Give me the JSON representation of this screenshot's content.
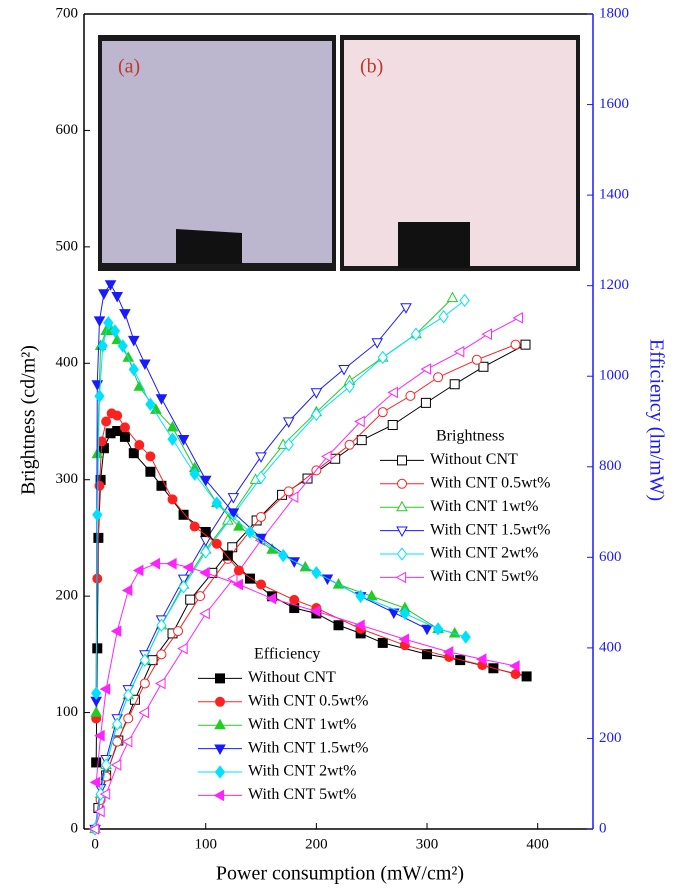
{
  "chart_data": {
    "type": "line",
    "x_label": "Power consumption (mW/cm²)",
    "y_label": "Brightness (cd/m²)",
    "y2_label": "Efficiency (lm/mW)",
    "y2_color": "#1a1aff",
    "annotations": [
      "(a)",
      "(b)"
    ],
    "xlim": [
      -10,
      450
    ],
    "xticks": [
      0,
      100,
      200,
      300,
      400
    ],
    "ylim": [
      0,
      700
    ],
    "yticks": [
      0,
      100,
      200,
      300,
      400,
      500,
      600,
      700
    ],
    "y2lim": [
      0,
      1800
    ],
    "y2ticks": [
      0,
      200,
      400,
      600,
      800,
      1000,
      1200,
      1400,
      1600,
      1800
    ],
    "legends": [
      {
        "title": "Brightness",
        "position": "right-middle"
      },
      {
        "title": "Efficiency",
        "position": "bottom-center"
      }
    ],
    "series": [
      {
        "name": "Without CNT",
        "color": "#000000",
        "marker": "square",
        "filled": false,
        "legend": 0,
        "x": [
          3,
          10,
          21,
          36,
          52,
          70,
          86,
          106,
          124,
          146,
          169,
          192,
          217,
          241,
          269,
          299,
          325,
          351,
          389
        ],
        "values": [
          18,
          46,
          76,
          111,
          145,
          168,
          197,
          220,
          242,
          265,
          287,
          301,
          318,
          334,
          347,
          366,
          382,
          397,
          416
        ]
      },
      {
        "name": "With CNT 0.5wt%",
        "color": "#ff2020",
        "marker": "circle",
        "filled": false,
        "legend": 0,
        "x": [
          0,
          5,
          10,
          20,
          30,
          45,
          60,
          75,
          95,
          120,
          150,
          175,
          200,
          230,
          260,
          285,
          310,
          345,
          380
        ],
        "values": [
          0,
          25,
          45,
          75,
          95,
          125,
          150,
          170,
          200,
          232,
          268,
          290,
          308,
          330,
          358,
          372,
          388,
          403,
          416
        ]
      },
      {
        "name": "With CNT 1wt%",
        "color": "#22cc22",
        "marker": "triangle-up",
        "filled": false,
        "legend": 0,
        "x": [
          0,
          5,
          10,
          20,
          30,
          45,
          60,
          80,
          100,
          120,
          145,
          170,
          200,
          230,
          260,
          290,
          323
        ],
        "values": [
          0,
          30,
          55,
          90,
          115,
          145,
          175,
          210,
          240,
          265,
          300,
          330,
          358,
          385,
          405,
          425,
          456
        ]
      },
      {
        "name": "With CNT 1.5wt%",
        "color": "#1a1aff",
        "marker": "triangle-down",
        "filled": false,
        "legend": 0,
        "x": [
          0,
          5,
          10,
          20,
          30,
          45,
          60,
          80,
          100,
          125,
          150,
          175,
          200,
          225,
          255,
          281
        ],
        "values": [
          0,
          35,
          60,
          95,
          120,
          150,
          180,
          215,
          248,
          285,
          320,
          350,
          375,
          395,
          418,
          448
        ]
      },
      {
        "name": "With CNT 2wt%",
        "color": "#00e0ff",
        "marker": "diamond",
        "filled": false,
        "legend": 0,
        "x": [
          0,
          5,
          10,
          20,
          30,
          45,
          60,
          80,
          100,
          125,
          150,
          175,
          200,
          230,
          260,
          290,
          315,
          334
        ],
        "values": [
          0,
          30,
          55,
          90,
          115,
          145,
          175,
          208,
          238,
          270,
          302,
          330,
          356,
          380,
          405,
          425,
          440,
          454
        ]
      },
      {
        "name": "With CNT 5wt%",
        "color": "#ff22ff",
        "marker": "triangle-left",
        "filled": false,
        "legend": 0,
        "x": [
          0,
          5,
          10,
          20,
          30,
          45,
          60,
          80,
          100,
          125,
          150,
          180,
          210,
          240,
          270,
          300,
          330,
          355,
          383
        ],
        "values": [
          0,
          15,
          30,
          55,
          75,
          100,
          125,
          155,
          185,
          215,
          248,
          285,
          320,
          350,
          375,
          395,
          410,
          425,
          439
        ]
      },
      {
        "name": "Without CNT",
        "color": "#000000",
        "marker": "square",
        "filled": true,
        "legend": 1,
        "axis": "y2",
        "x": [
          1,
          2,
          3,
          5,
          8,
          14,
          20,
          27,
          35,
          50,
          60,
          80,
          100,
          120,
          140,
          160,
          180,
          200,
          220,
          240,
          260,
          300,
          330,
          360,
          390
        ],
        "values": [
          147,
          399,
          643,
          771,
          841,
          874,
          879,
          866,
          830,
          789,
          758,
          694,
          656,
          604,
          553,
          514,
          488,
          476,
          450,
          432,
          411,
          386,
          373,
          355,
          337
        ]
      },
      {
        "name": "With CNT 0.5wt%",
        "color": "#ff2020",
        "marker": "circle",
        "filled": true,
        "legend": 1,
        "axis": "y2",
        "x": [
          1,
          2,
          4,
          6,
          10,
          15,
          20,
          27,
          40,
          50,
          70,
          90,
          110,
          130,
          150,
          180,
          200,
          240,
          280,
          320,
          350,
          380
        ],
        "values": [
          244,
          553,
          758,
          856,
          900,
          918,
          913,
          887,
          848,
          823,
          728,
          668,
          630,
          571,
          540,
          506,
          488,
          442,
          406,
          380,
          362,
          342
        ]
      },
      {
        "name": "With CNT 1wt%",
        "color": "#22cc22",
        "marker": "triangle-up",
        "filled": true,
        "legend": 1,
        "axis": "y2",
        "x": [
          1,
          2,
          5,
          10,
          15,
          20,
          30,
          40,
          55,
          70,
          90,
          110,
          130,
          160,
          190,
          220,
          250,
          280,
          310,
          325
        ],
        "values": [
          257,
          828,
          1067,
          1100,
          1100,
          1080,
          1041,
          977,
          926,
          887,
          797,
          720,
          668,
          617,
          578,
          540,
          514,
          488,
          442,
          432
        ]
      },
      {
        "name": "With CNT 1.5wt%",
        "color": "#1a1aff",
        "marker": "triangle-down",
        "filled": true,
        "legend": 1,
        "axis": "y2",
        "x": [
          1,
          2,
          4,
          8,
          14,
          20,
          27,
          35,
          45,
          60,
          80,
          100,
          125,
          150,
          180,
          210,
          240,
          270,
          300
        ],
        "values": [
          283,
          982,
          1123,
          1183,
          1203,
          1177,
          1139,
          1080,
          1028,
          951,
          861,
          771,
          699,
          643,
          591,
          553,
          514,
          478,
          442
        ]
      },
      {
        "name": "With CNT 2wt%",
        "color": "#00e0ff",
        "marker": "diamond",
        "filled": true,
        "legend": 1,
        "axis": "y2",
        "x": [
          1,
          2,
          4,
          7,
          12,
          18,
          25,
          35,
          50,
          70,
          90,
          110,
          140,
          170,
          200,
          240,
          280,
          310,
          335
        ],
        "values": [
          300,
          694,
          956,
          1067,
          1118,
          1100,
          1067,
          1015,
          938,
          861,
          784,
          720,
          656,
          604,
          566,
          514,
          476,
          442,
          424
        ]
      },
      {
        "name": "With CNT 5wt%",
        "color": "#ff22ff",
        "marker": "triangle-left",
        "filled": true,
        "legend": 1,
        "axis": "y2",
        "x": [
          1,
          5,
          10,
          20,
          30,
          40,
          55,
          70,
          85,
          100,
          130,
          160,
          200,
          240,
          280,
          320,
          350,
          380
        ],
        "values": [
          103,
          206,
          309,
          437,
          527,
          571,
          586,
          586,
          578,
          566,
          540,
          509,
          481,
          450,
          419,
          391,
          375,
          360
        ]
      }
    ]
  }
}
